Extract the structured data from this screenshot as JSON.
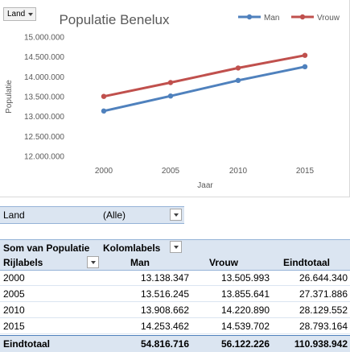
{
  "chart": {
    "field_button": {
      "label": "Land"
    }
  },
  "chart_data": {
    "type": "line",
    "title": "Populatie Benelux",
    "xlabel": "Jaar",
    "ylabel": "Populatie",
    "categories": [
      "2000",
      "2005",
      "2010",
      "2015"
    ],
    "ylim": [
      12000000,
      15000000
    ],
    "yticks": [
      "12.000.000",
      "12.500.000",
      "13.000.000",
      "13.500.000",
      "14.000.000",
      "14.500.000",
      "15.000.000"
    ],
    "series": [
      {
        "name": "Man",
        "values": [
          13138347,
          13516245,
          13908662,
          14253462
        ],
        "color": "#4f81bd"
      },
      {
        "name": "Vrouw",
        "values": [
          13505993,
          13855641,
          14220890,
          14539702
        ],
        "color": "#c0504d"
      }
    ],
    "legend_position": "top-right",
    "grid": false
  },
  "filter": {
    "label": "Land",
    "value": "(Alle)"
  },
  "pivot": {
    "values_label": "Som van Populatie",
    "column_labels": "Kolomlabels",
    "row_labels": "Rijlabels",
    "columns": [
      "Man",
      "Vrouw",
      "Eindtotaal"
    ],
    "rows": [
      {
        "label": "2000",
        "values": [
          "13.138.347",
          "13.505.993",
          "26.644.340"
        ]
      },
      {
        "label": "2005",
        "values": [
          "13.516.245",
          "13.855.641",
          "27.371.886"
        ]
      },
      {
        "label": "2010",
        "values": [
          "13.908.662",
          "14.220.890",
          "28.129.552"
        ]
      },
      {
        "label": "2015",
        "values": [
          "14.253.462",
          "14.539.702",
          "28.793.164"
        ]
      }
    ],
    "total": {
      "label": "Eindtotaal",
      "values": [
        "54.816.716",
        "56.122.226",
        "110.938.942"
      ]
    }
  }
}
